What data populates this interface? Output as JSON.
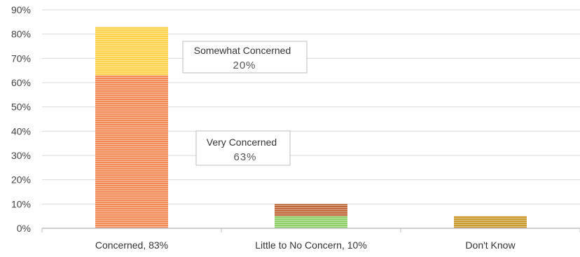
{
  "chart_data": {
    "type": "bar",
    "stacked": true,
    "categories": [
      "Concerned, 83%",
      "Little to No Concern, 10%",
      "Don't Know"
    ],
    "series": [
      {
        "color": "#f28c56",
        "values": [
          63,
          0,
          0
        ]
      },
      {
        "color": "#fcd24a",
        "values": [
          20,
          0,
          0
        ]
      },
      {
        "color": "#8fcf6a",
        "values": [
          0,
          5,
          0
        ]
      },
      {
        "color": "#c0683a",
        "values": [
          0,
          5,
          0
        ]
      },
      {
        "color": "#c99a2e",
        "values": [
          0,
          0,
          5
        ]
      }
    ],
    "ylim": [
      0,
      90
    ],
    "y_ticks": [
      "0%",
      "10%",
      "20%",
      "30%",
      "40%",
      "50%",
      "60%",
      "70%",
      "80%",
      "90%"
    ],
    "grid": true,
    "annotations": [
      {
        "title": "Somewhat Concerned",
        "value": "20%"
      },
      {
        "title": "Very Concerned",
        "value": "63%"
      }
    ]
  },
  "colors": {
    "grid": "#d9d9d9",
    "axis": "#bfbfbf",
    "stripe": "#ffffff"
  }
}
